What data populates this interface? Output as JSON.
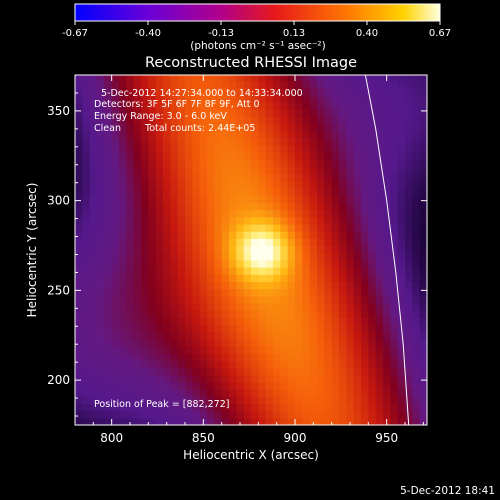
{
  "chart_data": {
    "type": "heatmap",
    "title": "Reconstructed RHESSI Image",
    "xlabel": "Heliocentric X (arcsec)",
    "ylabel": "Heliocentric Y (arcsec)",
    "xlim": [
      780,
      972
    ],
    "ylim": [
      175,
      370
    ],
    "x_ticks": [
      800,
      850,
      900,
      950
    ],
    "y_ticks": [
      200,
      250,
      300,
      350
    ],
    "colorbar": {
      "label": "(photons cm⁻² s⁻¹ asec⁻²)",
      "range": [
        -0.67,
        0.67
      ],
      "ticks": [
        "-0.67",
        "-0.40",
        "-0.13",
        "0.13",
        "0.40",
        "0.67"
      ]
    },
    "annotations": [
      "5-Dec-2012 14:27:34.000 to 14:33:34.000",
      "Detectors: 3F 5F 6F 7F 8F 9F, Att 0",
      "Energy Range: 3.0 - 6.0 keV",
      "Clean",
      "Total counts: 2.44E+05"
    ],
    "peak": {
      "label": "Position of Peak = [882,272]",
      "x": 882,
      "y": 272
    },
    "limb_curve": [
      [
        938,
        372
      ],
      [
        944,
        340
      ],
      [
        950,
        300
      ],
      [
        955,
        260
      ],
      [
        959,
        220
      ],
      [
        962,
        175
      ]
    ],
    "timestamp": "5-Dec-2012 18:41"
  }
}
